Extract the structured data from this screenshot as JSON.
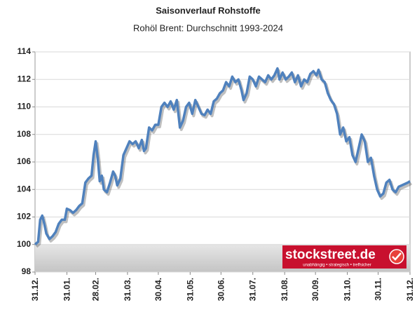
{
  "chart_data": {
    "type": "line",
    "title": "Saisonverlauf Rohstoffe",
    "subtitle": "Rohöl Brent: Durchschnitt 1993-2024",
    "logo": {
      "name": "stockstreet.de",
      "tagline": "unabhängig • strategisch • treffsicher"
    },
    "x": [
      0,
      3,
      5,
      7,
      9,
      11,
      14,
      17,
      20,
      23,
      26,
      29,
      31,
      34,
      37,
      40,
      43,
      46,
      49,
      52,
      55,
      57,
      59,
      61,
      63,
      65,
      67,
      70,
      73,
      76,
      78,
      80,
      83,
      86,
      89,
      92,
      95,
      98,
      101,
      104,
      106,
      108,
      111,
      114,
      117,
      120,
      123,
      126,
      129,
      132,
      135,
      138,
      141,
      144,
      147,
      150,
      153,
      156,
      159,
      162,
      165,
      168,
      171,
      174,
      177,
      180,
      183,
      186,
      189,
      192,
      195,
      198,
      201,
      203,
      206,
      209,
      212,
      215,
      218,
      221,
      224,
      227,
      230,
      233,
      236,
      238,
      241,
      244,
      247,
      250,
      253,
      256,
      259,
      262,
      265,
      268,
      271,
      274,
      276,
      279,
      282,
      285,
      288,
      291,
      294,
      297,
      300,
      303,
      306,
      309,
      312,
      315,
      318,
      321,
      324,
      327,
      330,
      333,
      336,
      339,
      342,
      345,
      348,
      351,
      354,
      357,
      360,
      363,
      365
    ],
    "series": [
      {
        "name": "Rohöl Brent",
        "color": "#4f81bd",
        "values": [
          100,
          100.2,
          101.8,
          102.1,
          101.5,
          100.8,
          100.4,
          100.6,
          100.9,
          101.5,
          101.8,
          101.8,
          102.6,
          102.5,
          102.3,
          102.5,
          102.8,
          103.0,
          104.5,
          104.8,
          105.0,
          106.5,
          107.5,
          106.3,
          104.6,
          105.0,
          104.0,
          103.8,
          104.5,
          105.3,
          105.0,
          104.3,
          104.8,
          106.5,
          107.0,
          107.5,
          107.3,
          107.5,
          107.0,
          107.6,
          106.8,
          107.0,
          108.5,
          108.3,
          108.7,
          108.7,
          110.0,
          110.3,
          110.0,
          110.4,
          109.8,
          110.5,
          108.5,
          109.0,
          110.0,
          110.3,
          109.5,
          110.5,
          110.0,
          109.5,
          109.4,
          109.8,
          109.5,
          110.4,
          110.6,
          111.0,
          111.2,
          111.8,
          111.5,
          112.2,
          111.8,
          112.0,
          111.2,
          110.5,
          111.0,
          112.2,
          112.0,
          111.5,
          112.2,
          112.0,
          111.8,
          112.3,
          112.0,
          112.3,
          112.8,
          112.0,
          112.5,
          112.0,
          112.2,
          112.5,
          111.8,
          112.3,
          111.5,
          112.0,
          111.8,
          112.4,
          112.6,
          112.3,
          112.7,
          112.0,
          111.8,
          111.0,
          110.5,
          110.2,
          109.5,
          108.0,
          108.5,
          107.5,
          107.8,
          106.5,
          106.0,
          107.0,
          108.0,
          107.5,
          106.0,
          106.3,
          105.0,
          104.0,
          103.5,
          103.7,
          104.5,
          104.7,
          104.0,
          103.8,
          104.2,
          104.3,
          104.4,
          104.5,
          104.6
        ]
      }
    ],
    "xlim": [
      0,
      365
    ],
    "xticks": [
      {
        "value": 0,
        "label": "31.12."
      },
      {
        "value": 31,
        "label": "31.01."
      },
      {
        "value": 59,
        "label": "28.02."
      },
      {
        "value": 90,
        "label": "31.03."
      },
      {
        "value": 120,
        "label": "30.04."
      },
      {
        "value": 151,
        "label": "31.05."
      },
      {
        "value": 181,
        "label": "30.06."
      },
      {
        "value": 212,
        "label": "31.07."
      },
      {
        "value": 243,
        "label": "31.08."
      },
      {
        "value": 273,
        "label": "30.09."
      },
      {
        "value": 304,
        "label": "31.10."
      },
      {
        "value": 334,
        "label": "30.11."
      },
      {
        "value": 365,
        "label": "31.12."
      }
    ],
    "ylim": [
      98,
      114
    ],
    "yticks": [
      98,
      100,
      102,
      104,
      106,
      108,
      110,
      112,
      114
    ],
    "baseline": 100,
    "grid": true
  }
}
